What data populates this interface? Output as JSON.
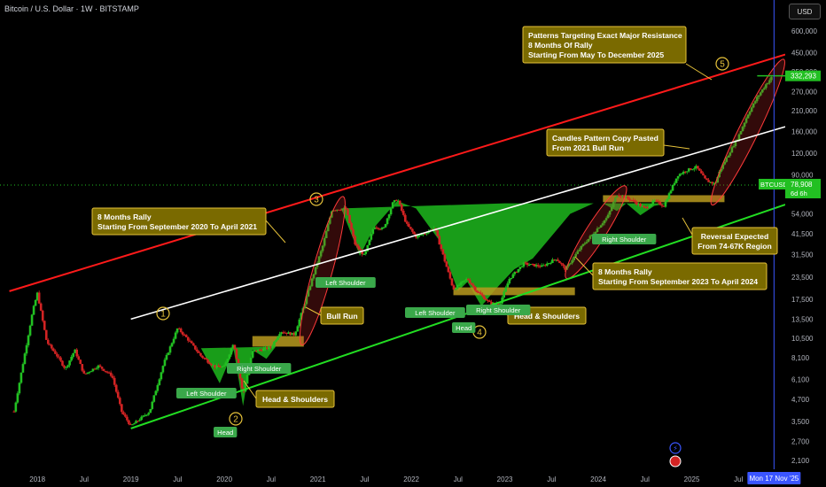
{
  "header": {
    "title": "Bitcoin / U.S. Dollar · 1W · BITSTAMP"
  },
  "currency_button": "USD",
  "colors": {
    "up": "#22c022",
    "down": "#d22323",
    "channel_top": "#ff1a1a",
    "mid": "#ffffff",
    "channel_bottom": "#22dd22",
    "note_bg": "#7a6a00",
    "note_border": "#e6c23a",
    "label_bg": "#3aa84a",
    "cursor_line": "#3a55ff",
    "hs_fill": "#1db91d"
  },
  "price_axis": {
    "ticks": [
      "600,000",
      "450,000",
      "350,000",
      "270,000",
      "210,000",
      "160,000",
      "120,000",
      "90,000",
      "54,000",
      "41,500",
      "31,500",
      "23,500",
      "17,500",
      "13,500",
      "10,500",
      "8,100",
      "6,100",
      "4,700",
      "3,500",
      "2,700",
      "2,100"
    ],
    "last_price_label": "332,293",
    "symbol_label": "BTCUSD",
    "symbol_price": "78,908",
    "symbol_countdown": "6d 6h"
  },
  "time_axis": {
    "ticks": [
      "2018",
      "Jul",
      "2019",
      "Jul",
      "2020",
      "Jul",
      "2021",
      "Jul",
      "2022",
      "Jul",
      "2023",
      "Jul",
      "2024",
      "Jul",
      "2025",
      "Jul",
      "J"
    ],
    "cursor_label": "Mon 17 Nov '25"
  },
  "annotations": {
    "note_top": [
      "Patterns Targeting Exact Major Resistance",
      "8 Months Of Rally",
      "Starting From May To December 2025"
    ],
    "note_copy": [
      "Candles Pattern Copy Pasted",
      "From 2021 Bull Run"
    ],
    "note_rally_2020": [
      "8 Months Rally",
      "Starting From September 2020 To April 2021"
    ],
    "note_bull_run": [
      "Bull Run"
    ],
    "note_hs_2020": [
      "Head & Shoulders"
    ],
    "note_hs_2022": [
      "Head & Shoulders"
    ],
    "note_rally_2023": [
      "8 Months Rally",
      "Starting From September 2023 To April 2024"
    ],
    "note_reversal": [
      "Reversal Expected",
      "From 74-67K Region"
    ],
    "markers": [
      "1",
      "2",
      "3",
      "4",
      "5"
    ],
    "labels": {
      "ls_2020": "Left Shoulder",
      "head_2020": "Head",
      "rs_2020": "Right Shoulder",
      "ls_2021": "Left Shoulder",
      "ls_2022": "Left Shoulder",
      "head_2022": "Head",
      "rs_2022": "Right Shoulder",
      "rs_2024": "Right Shoulder"
    }
  },
  "chart_data": {
    "type": "candlestick",
    "title": "Bitcoin / U.S. Dollar · 1W · BITSTAMP",
    "scale": "log",
    "ylim": [
      2100,
      600000
    ],
    "xlim": [
      2017.6,
      2026.0
    ],
    "series": [
      {
        "values": [
          [
            2017.75,
            4000
          ],
          [
            2017.95,
            15000
          ],
          [
            2018.0,
            19000
          ],
          [
            2018.1,
            10000
          ],
          [
            2018.2,
            8500
          ],
          [
            2018.3,
            7000
          ],
          [
            2018.4,
            9000
          ],
          [
            2018.5,
            6500
          ],
          [
            2018.65,
            7300
          ],
          [
            2018.8,
            6400
          ],
          [
            2018.9,
            4000
          ],
          [
            2019.0,
            3300
          ],
          [
            2019.2,
            4000
          ],
          [
            2019.35,
            7500
          ],
          [
            2019.5,
            12000
          ],
          [
            2019.6,
            10500
          ],
          [
            2019.75,
            8300
          ],
          [
            2019.9,
            7200
          ],
          [
            2020.0,
            7200
          ],
          [
            2020.1,
            10000
          ],
          [
            2020.2,
            5000
          ],
          [
            2020.3,
            8800
          ],
          [
            2020.5,
            9300
          ],
          [
            2020.6,
            11500
          ],
          [
            2020.75,
            11000
          ],
          [
            2020.85,
            16000
          ],
          [
            2020.95,
            24000
          ],
          [
            2021.05,
            35000
          ],
          [
            2021.15,
            57000
          ],
          [
            2021.3,
            58000
          ],
          [
            2021.4,
            36000
          ],
          [
            2021.5,
            31000
          ],
          [
            2021.6,
            46000
          ],
          [
            2021.7,
            44000
          ],
          [
            2021.8,
            62000
          ],
          [
            2021.85,
            66000
          ],
          [
            2021.95,
            47000
          ],
          [
            2022.05,
            40000
          ],
          [
            2022.15,
            42000
          ],
          [
            2022.25,
            45000
          ],
          [
            2022.35,
            30000
          ],
          [
            2022.45,
            20000
          ],
          [
            2022.6,
            23000
          ],
          [
            2022.7,
            19500
          ],
          [
            2022.85,
            16500
          ],
          [
            2022.95,
            16700
          ],
          [
            2023.05,
            23000
          ],
          [
            2023.2,
            28000
          ],
          [
            2023.4,
            27000
          ],
          [
            2023.55,
            30000
          ],
          [
            2023.65,
            26000
          ],
          [
            2023.8,
            34000
          ],
          [
            2023.95,
            42000
          ],
          [
            2024.1,
            52000
          ],
          [
            2024.2,
            70000
          ],
          [
            2024.35,
            65000
          ],
          [
            2024.5,
            58000
          ],
          [
            2024.6,
            64000
          ],
          [
            2024.7,
            60000
          ],
          [
            2024.85,
            90000
          ],
          [
            2024.95,
            96000
          ],
          [
            2025.05,
            100000
          ],
          [
            2025.15,
            84000
          ],
          [
            2025.25,
            80000
          ],
          [
            2025.3,
            95000
          ],
          [
            2025.4,
            120000
          ],
          [
            2025.5,
            150000
          ],
          [
            2025.6,
            200000
          ],
          [
            2025.7,
            250000
          ],
          [
            2025.8,
            300000
          ],
          [
            2025.87,
            332293
          ]
        ]
      }
    ],
    "current_price": 78908,
    "projected_target": 332293
  }
}
